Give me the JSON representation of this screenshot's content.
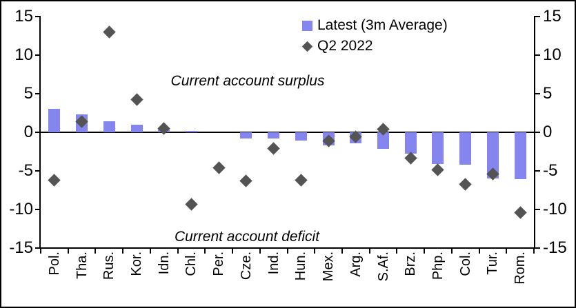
{
  "chart_data": {
    "type": "bar",
    "title": "",
    "xlabel": "",
    "ylabel": "",
    "ylim": [
      -15,
      15
    ],
    "y_tick_labels": [
      "15",
      "10",
      "5",
      "0",
      "-5",
      "-10",
      "-15"
    ],
    "y_tick_values": [
      15,
      10,
      5,
      0,
      -5,
      -10,
      -15
    ],
    "grid": false,
    "zero_line": true,
    "legend_position": "top-right-inside",
    "categories": [
      "Pol.",
      "Tha.",
      "Rus.",
      "Kor.",
      "Idn.",
      "Chl.",
      "Per.",
      "Cze.",
      "Ind.",
      "Hun.",
      "Mex.",
      "Arg.",
      "S.Af.",
      "Brz.",
      "Php.",
      "Col.",
      "Tur.",
      "Rom."
    ],
    "series": [
      {
        "name": "Latest (3m Average)",
        "type": "bar",
        "color": "#8585F0",
        "values": [
          3.0,
          2.3,
          1.4,
          1.0,
          0.4,
          0.2,
          0.0,
          -0.8,
          -0.8,
          -1.1,
          -1.7,
          -1.4,
          -2.1,
          -2.8,
          -4.1,
          -4.2,
          -6.0,
          -6.1
        ]
      },
      {
        "name": "Q2 2022",
        "type": "scatter",
        "marker": "diamond",
        "color": "#545454",
        "values": [
          -6.2,
          1.4,
          13.0,
          4.2,
          0.5,
          -9.3,
          -4.6,
          -6.3,
          -2.1,
          -6.2,
          -1.1,
          -0.6,
          0.4,
          -3.3,
          -4.9,
          -6.7,
          -5.4,
          -10.4
        ]
      }
    ],
    "annotations": [
      {
        "text": "Current account surplus",
        "position": "upper-middle"
      },
      {
        "text": "Current account deficit",
        "position": "lower-middle"
      }
    ]
  }
}
